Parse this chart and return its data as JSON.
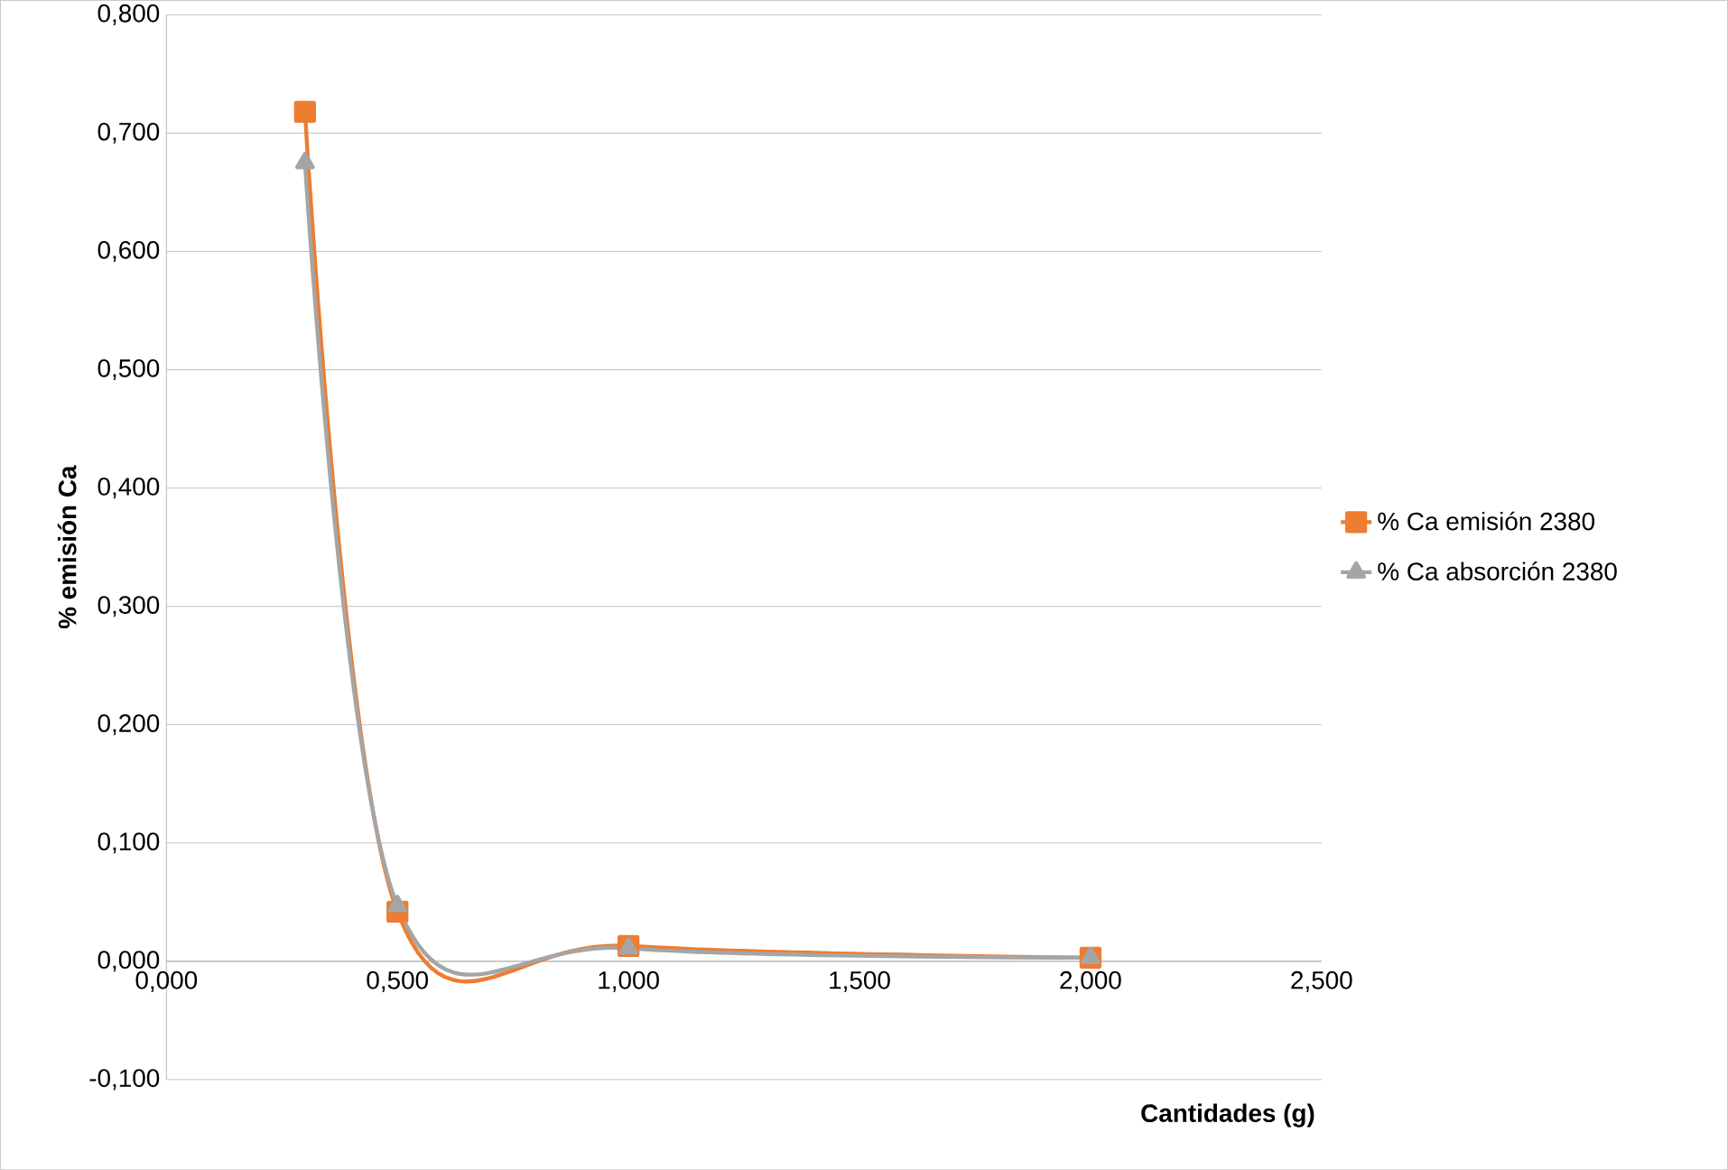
{
  "chart_data": {
    "type": "line",
    "xlabel": "Cantidades (g)",
    "ylabel": "% emisión Ca",
    "x": [
      0.3,
      0.5,
      1.0,
      2.0
    ],
    "series": [
      {
        "name": "% Ca emisión 2380",
        "color": "#ed7d31",
        "marker": "square",
        "values": [
          0.718,
          0.042,
          0.013,
          0.003
        ]
      },
      {
        "name": "% Ca absorción 2380",
        "color": "#a5a5a5",
        "marker": "triangle",
        "values": [
          0.675,
          0.047,
          0.011,
          0.003
        ]
      }
    ],
    "xlim": [
      0,
      2.5
    ],
    "ylim": [
      -0.1,
      0.8
    ],
    "xticks": [
      {
        "value": 0,
        "label": "0,000"
      },
      {
        "value": 0.5,
        "label": "0,500"
      },
      {
        "value": 1.0,
        "label": "1,000"
      },
      {
        "value": 1.5,
        "label": "1,500"
      },
      {
        "value": 2.0,
        "label": "2,000"
      },
      {
        "value": 2.5,
        "label": "2,500"
      }
    ],
    "yticks": [
      {
        "value": -0.1,
        "label": "-0,100"
      },
      {
        "value": 0,
        "label": "0,000"
      },
      {
        "value": 0.1,
        "label": "0,100"
      },
      {
        "value": 0.2,
        "label": "0,200"
      },
      {
        "value": 0.3,
        "label": "0,300"
      },
      {
        "value": 0.4,
        "label": "0,400"
      },
      {
        "value": 0.5,
        "label": "0,500"
      },
      {
        "value": 0.6,
        "label": "0,600"
      },
      {
        "value": 0.7,
        "label": "0,700"
      },
      {
        "value": 0.8,
        "label": "0,800"
      }
    ],
    "grid": "y",
    "legend": "right",
    "line_style": "solid"
  }
}
